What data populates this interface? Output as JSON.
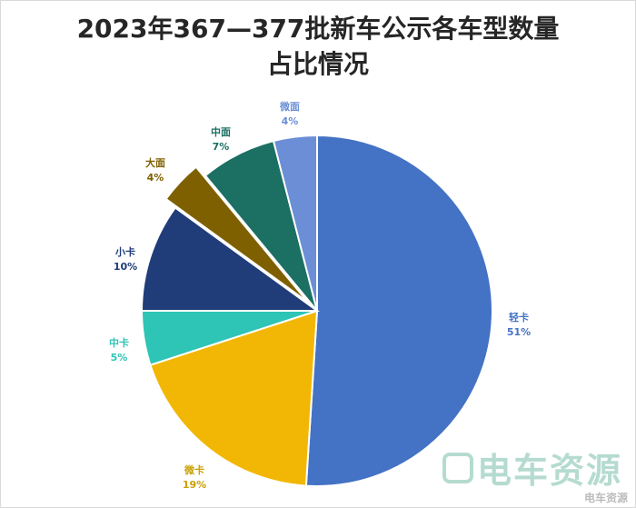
{
  "chart_data": {
    "type": "pie",
    "title_lines": [
      "2023年367—377批新车公示各车型数量",
      "占比情况"
    ],
    "categories": [
      "轻卡",
      "微卡",
      "中卡",
      "小卡",
      "大面",
      "中面",
      "微面"
    ],
    "values": [
      51,
      19,
      5,
      10,
      4,
      7,
      4
    ],
    "percent_labels": [
      "51%",
      "19%",
      "5%",
      "10%",
      "4%",
      "7%",
      "4%"
    ],
    "colors": [
      "#4472C4",
      "#F2B705",
      "#2EC4B6",
      "#203D7A",
      "#7F6000",
      "#1B6F63",
      "#6B8ED6"
    ],
    "label_colors": [
      "#4472C4",
      "#C9A000",
      "#2EC4B6",
      "#203D7A",
      "#7F6000",
      "#1B6F63",
      "#6B8ED6"
    ],
    "exploded": [
      "大面"
    ],
    "legend": "none"
  },
  "watermark": {
    "text": "电车资源",
    "small_text": "电车资源"
  }
}
